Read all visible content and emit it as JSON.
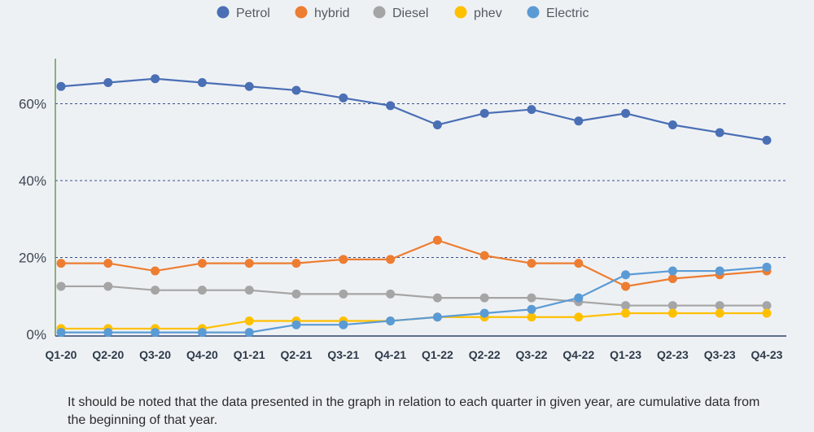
{
  "chart_data": {
    "type": "line",
    "categories": [
      "Q1-20",
      "Q2-20",
      "Q3-20",
      "Q4-20",
      "Q1-21",
      "Q2-21",
      "Q3-21",
      "Q4-21",
      "Q1-22",
      "Q2-22",
      "Q3-22",
      "Q4-22",
      "Q1-23",
      "Q2-23",
      "Q3-23",
      "Q4-23"
    ],
    "yticks": [
      "0%",
      "20%",
      "40%",
      "60%"
    ],
    "ylim": [
      0,
      70
    ],
    "grid": "horizontal dashed",
    "legend_position": "top",
    "series": [
      {
        "name": "Petrol",
        "color": "#4a6fb5",
        "values": [
          64.5,
          65.5,
          66.5,
          65.5,
          64.5,
          63.5,
          61.5,
          59.5,
          54.5,
          57.5,
          58.5,
          55.5,
          57.5,
          54.5,
          52.5,
          50.5
        ]
      },
      {
        "name": "hybrid",
        "color": "#ed7d31",
        "values": [
          18.5,
          18.5,
          16.5,
          18.5,
          18.5,
          18.5,
          19.5,
          19.5,
          24.5,
          20.5,
          18.5,
          18.5,
          12.5,
          14.5,
          15.5,
          16.5
        ]
      },
      {
        "name": "Diesel",
        "color": "#a5a5a5",
        "values": [
          12.5,
          12.5,
          11.5,
          11.5,
          11.5,
          10.5,
          10.5,
          10.5,
          9.5,
          9.5,
          9.5,
          8.5,
          7.5,
          7.5,
          7.5,
          7.5
        ]
      },
      {
        "name": "phev",
        "color": "#ffc000",
        "values": [
          1.5,
          1.5,
          1.5,
          1.5,
          3.5,
          3.5,
          3.5,
          3.5,
          4.5,
          4.5,
          4.5,
          4.5,
          5.5,
          5.5,
          5.5,
          5.5
        ]
      },
      {
        "name": "Electric",
        "color": "#5b9bd5",
        "values": [
          0.5,
          0.5,
          0.5,
          0.5,
          0.5,
          2.5,
          2.5,
          3.5,
          4.5,
          5.5,
          6.5,
          9.5,
          15.5,
          16.5,
          16.5,
          17.5
        ]
      }
    ]
  },
  "note": "It should be noted that the data presented in the graph in relation to each quarter in given year, are cumulative data from the beginning of that year."
}
